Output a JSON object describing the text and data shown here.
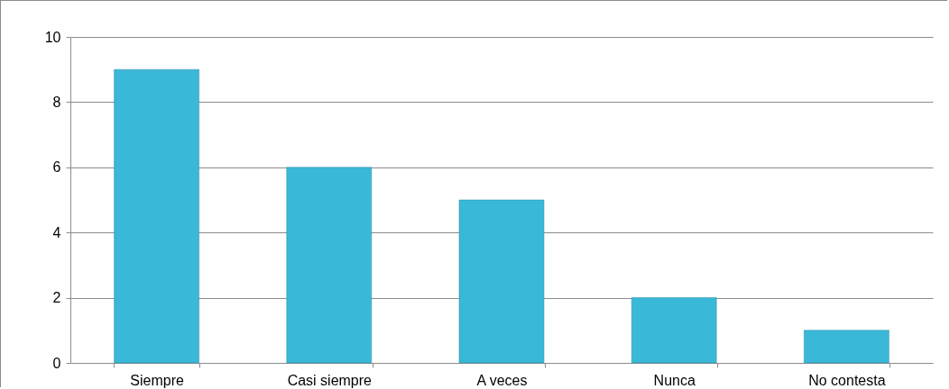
{
  "chart_data": {
    "type": "bar",
    "categories": [
      "Siempre",
      "Casi siempre",
      "A veces",
      "Nunca",
      "No contesta"
    ],
    "values": [
      9,
      6,
      5,
      2,
      1
    ],
    "color": "#3ab8d8",
    "ylim": [
      0,
      10
    ],
    "yticks": [
      0,
      2,
      4,
      6,
      8,
      10
    ],
    "grid": "y"
  }
}
